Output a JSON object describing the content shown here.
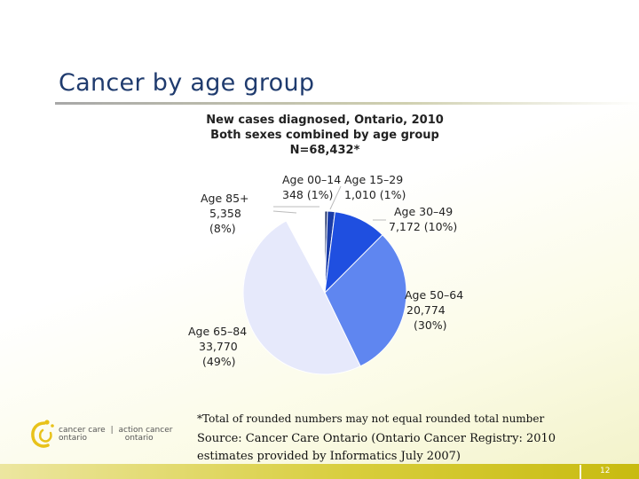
{
  "slide": {
    "title": "Cancer by age group",
    "footnote": "*Total of rounded numbers may not equal rounded total number",
    "source": "Source: Cancer Care Ontario (Ontario Cancer Registry: 2010 estimates provided by Informatics July 2007)",
    "page_number": "12"
  },
  "logo": {
    "left_line1": "cancer care",
    "left_line2": "ontario",
    "separator": "|",
    "right_line1": "action cancer",
    "right_line2": "ontario"
  },
  "colors": {
    "title": "#1f3b6e",
    "accent_bar": "#d8ce3c",
    "logo_yellow": "#e8c21a"
  },
  "chart_data": {
    "type": "pie",
    "title": [
      "New cases diagnosed, Ontario, 2010",
      "Both sexes combined by age group",
      "N=68,432*"
    ],
    "legend": "none",
    "slices": [
      {
        "label": "Age 00–14",
        "value": 348,
        "percent": 1,
        "value_text": "348",
        "percent_text": "(1%)",
        "color": "#0a1f5c"
      },
      {
        "label": "Age 15–29",
        "value": 1010,
        "percent": 1,
        "value_text": "1,010",
        "percent_text": "(1%)",
        "color": "#1a3ca8"
      },
      {
        "label": "Age 30–49",
        "value": 7172,
        "percent": 10,
        "value_text": "7,172",
        "percent_text": "(10%)",
        "color": "#1f4fe0"
      },
      {
        "label": "Age 50–64",
        "value": 20774,
        "percent": 30,
        "value_text": "20,774",
        "percent_text": "(30%)",
        "color": "#5f86f0"
      },
      {
        "label": "Age 65–84",
        "value": 33770,
        "percent": 49,
        "value_text": "33,770",
        "percent_text": "(49%)",
        "color": "#e6e9fb"
      },
      {
        "label": "Age 85+",
        "value": 5358,
        "percent": 8,
        "value_text": "5,358",
        "percent_text": "(8%)",
        "color": "#ffffff"
      }
    ]
  }
}
